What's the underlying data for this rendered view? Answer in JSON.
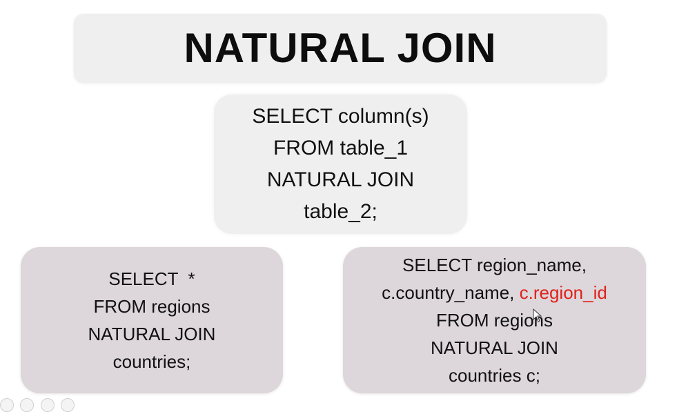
{
  "title": "NATURAL JOIN",
  "syntax": {
    "line1": "SELECT column(s)",
    "line2": "FROM table_1",
    "line3": "NATURAL JOIN",
    "line4": "table_2;"
  },
  "example_left": {
    "line1": "SELECT  *",
    "line2": "FROM regions",
    "line3": "NATURAL JOIN",
    "line4": "countries;"
  },
  "example_right": {
    "line1": "SELECT region_name,",
    "line2_plain": "c.country_name, ",
    "line2_highlight": "c.region_id",
    "line3": "FROM regions",
    "line4": "NATURAL JOIN",
    "line5": "countries c;"
  },
  "colors": {
    "highlight": "#e0211b",
    "title_bg": "#efefef",
    "syntax_bg": "#efefef",
    "example_bg": "#ddd6da"
  },
  "icons": {
    "cursor": "mouse-pointer-icon"
  }
}
